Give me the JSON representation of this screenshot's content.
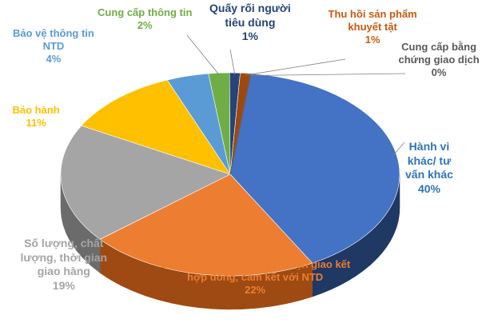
{
  "chart_data": {
    "type": "pie",
    "title": "",
    "style": "3d-pie",
    "legend": "none",
    "slices": [
      {
        "label_lines": [
          "Hành vi",
          "khác/ tư",
          "vấn khác"
        ],
        "value": 40,
        "value_label": "40%",
        "color": "#4472C4",
        "side_color": "#1F3864"
      },
      {
        "label_lines": [
          "Giao kết hợp đồng/ Thực hiện giao kết",
          "hợp đồng, cam kết với NTD"
        ],
        "value": 22,
        "value_label": "22%",
        "color": "#ED7D31",
        "side_color": "#9E4A12"
      },
      {
        "label_lines": [
          "Số lượng, chất",
          "lượng, thời gian",
          "giao hàng"
        ],
        "value": 19,
        "value_label": "19%",
        "color": "#A5A5A5",
        "side_color": "#6B6B6B"
      },
      {
        "label_lines": [
          "Bảo hành"
        ],
        "value": 11,
        "value_label": "11%",
        "color": "#FFC000",
        "side_color": "#B38600"
      },
      {
        "label_lines": [
          "Bảo vệ thông tin",
          "NTD"
        ],
        "value": 4,
        "value_label": "4%",
        "color": "#5B9BD5",
        "side_color": "#2E6A9E"
      },
      {
        "label_lines": [
          "Cung cấp thông tin"
        ],
        "value": 2,
        "value_label": "2%",
        "color": "#70AD47",
        "side_color": "#456E2A"
      },
      {
        "label_lines": [
          "Quấy rối người",
          "tiêu dùng"
        ],
        "value": 1,
        "value_label": "1%",
        "color": "#264478",
        "side_color": "#14264A"
      },
      {
        "label_lines": [
          "Thu hồi sản phẩm",
          "khuyết tật"
        ],
        "value": 1,
        "value_label": "1%",
        "color": "#9E480E",
        "side_color": "#5E2A08"
      },
      {
        "label_lines": [
          "Cung cấp bằng",
          "chứng giao dịch"
        ],
        "value": 0,
        "value_label": "0%",
        "color": "#636363",
        "side_color": "#3A3A3A"
      }
    ],
    "label_colors": [
      "#2E75B6",
      "#ED7D31",
      "#A5A5A5",
      "#FFC000",
      "#5B9BD5",
      "#70AD47",
      "#264478",
      "#C55A11",
      "#595959"
    ]
  }
}
